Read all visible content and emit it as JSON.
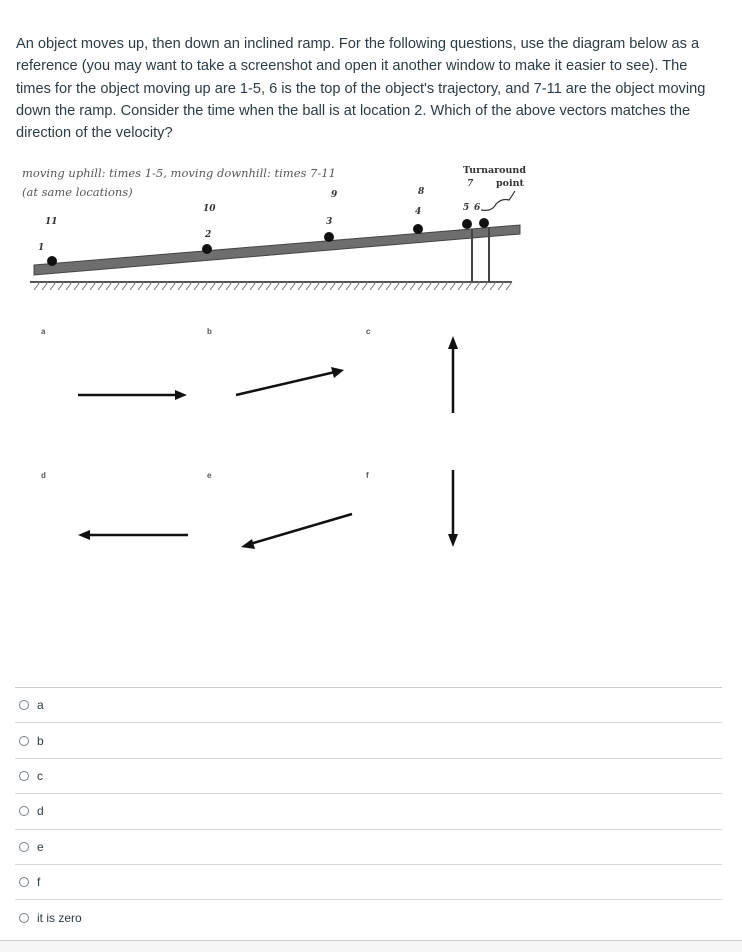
{
  "question": {
    "text": "An object moves up, then down an inclined ramp. For the following questions, use the diagram below as a reference (you may want to take a screenshot and open it another window to make it easier to see). The times for the object moving up are 1-5, 6 is the top of the object's trajectory, and 7-11 are the object moving down the ramp. Consider the time when the ball is at location 2. Which of the above vectors matches the direction of the velocity?"
  },
  "diagram": {
    "caption_line1": "moving uphill: times 1-5, moving downhill: times 7-11",
    "caption_line2": "(at same locations)",
    "turnaround_line1": "Turnaround",
    "turnaround_line2": "point",
    "ball_labels": {
      "l1": "1",
      "l2": "2",
      "l3": "3",
      "l4": "4",
      "l5": "5",
      "l6": "6",
      "l7": "7",
      "l8": "8",
      "l9": "9",
      "l10": "10",
      "l11": "11"
    }
  },
  "vectors": {
    "a": "a",
    "b": "b",
    "c": "c",
    "d": "d",
    "e": "e",
    "f": "f"
  },
  "answers": [
    {
      "label": "a"
    },
    {
      "label": "b"
    },
    {
      "label": "c"
    },
    {
      "label": "d"
    },
    {
      "label": "e"
    },
    {
      "label": "f"
    },
    {
      "label": "it is zero"
    }
  ]
}
